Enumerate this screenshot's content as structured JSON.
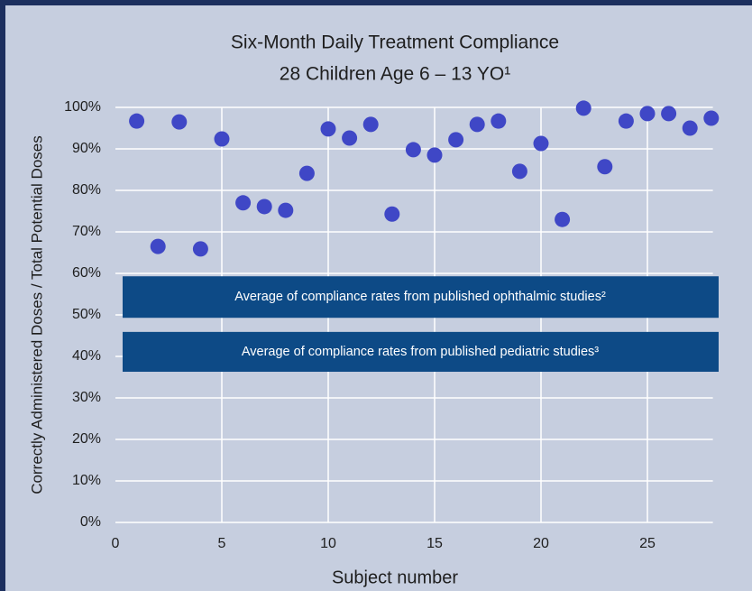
{
  "chart_data": {
    "type": "scatter",
    "title": "Six-Month Daily Treatment Compliance",
    "subtitle": "28 Children Age 6 – 13 YO¹",
    "x_label": "Subject number",
    "y_label": "Correctly Administered Doses / Total Potential Doses",
    "x": [
      1,
      2,
      3,
      4,
      5,
      6,
      7,
      8,
      9,
      10,
      11,
      12,
      13,
      14,
      15,
      16,
      17,
      18,
      19,
      20,
      21,
      22,
      23,
      24,
      25,
      26,
      27,
      28
    ],
    "values": [
      96.7,
      66.5,
      96.5,
      65.9,
      92.4,
      77.0,
      76.1,
      75.2,
      84.1,
      94.8,
      92.6,
      95.9,
      74.3,
      89.8,
      88.5,
      92.2,
      95.9,
      96.7,
      84.6,
      91.3,
      73.0,
      99.8,
      85.7,
      96.7,
      98.5,
      98.5,
      95.0,
      97.4
    ],
    "color": "#3f47c6",
    "xlim": [
      0,
      28.5
    ],
    "ylim": [
      0,
      100
    ],
    "xticks": [
      0,
      5,
      10,
      15,
      20,
      25
    ],
    "yticks": [
      {
        "value": 0,
        "label": "0%"
      },
      {
        "value": 10,
        "label": "10%"
      },
      {
        "value": 20,
        "label": "20%"
      },
      {
        "value": 30,
        "label": "30%"
      },
      {
        "value": 40,
        "label": "40%"
      },
      {
        "value": 50,
        "label": "50%"
      },
      {
        "value": 60,
        "label": "60%"
      },
      {
        "value": 70,
        "label": "70%"
      },
      {
        "value": 80,
        "label": "80%"
      },
      {
        "value": 90,
        "label": "90%"
      },
      {
        "value": 100,
        "label": "100%"
      }
    ],
    "grid": true,
    "annotations": [
      {
        "text": "Average of compliance rates from published ophthalmic studies²",
        "y_range": [
          49.3,
          59.3
        ],
        "color": "#0d4a86"
      },
      {
        "text": "Average of compliance rates from published pediatric studies³",
        "y_range": [
          36.3,
          45.9
        ],
        "color": "#0d4a86"
      }
    ]
  }
}
